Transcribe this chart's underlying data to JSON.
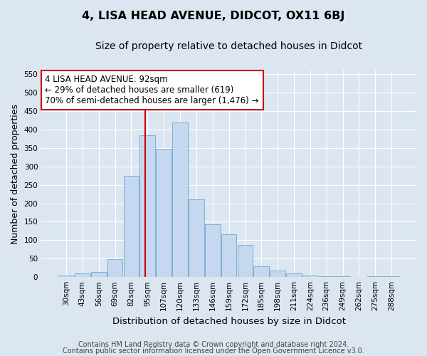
{
  "title": "4, LISA HEAD AVENUE, DIDCOT, OX11 6BJ",
  "subtitle": "Size of property relative to detached houses in Didcot",
  "xlabel": "Distribution of detached houses by size in Didcot",
  "ylabel": "Number of detached properties",
  "categories": [
    "30sqm",
    "43sqm",
    "56sqm",
    "69sqm",
    "82sqm",
    "95sqm",
    "107sqm",
    "120sqm",
    "133sqm",
    "146sqm",
    "159sqm",
    "172sqm",
    "185sqm",
    "198sqm",
    "211sqm",
    "224sqm",
    "236sqm",
    "249sqm",
    "262sqm",
    "275sqm",
    "288sqm"
  ],
  "values": [
    5,
    10,
    13,
    49,
    275,
    385,
    348,
    420,
    210,
    143,
    116,
    88,
    30,
    18,
    10,
    5,
    3,
    2,
    1,
    2,
    3
  ],
  "bar_color": "#c5d8f0",
  "bar_edge_color": "#7aafd4",
  "fig_bg_color": "#dce6f0",
  "axes_bg_color": "#dce6f0",
  "grid_color": "#ffffff",
  "vline_color": "#cc0000",
  "vline_x": 4.87,
  "annotation_text": "4 LISA HEAD AVENUE: 92sqm\n← 29% of detached houses are smaller (619)\n70% of semi-detached houses are larger (1,476) →",
  "annotation_box_facecolor": "#ffffff",
  "annotation_box_edgecolor": "#cc0000",
  "ylim": [
    0,
    560
  ],
  "yticks": [
    0,
    50,
    100,
    150,
    200,
    250,
    300,
    350,
    400,
    450,
    500,
    550
  ],
  "footer1": "Contains HM Land Registry data © Crown copyright and database right 2024.",
  "footer2": "Contains public sector information licensed under the Open Government Licence v3.0.",
  "title_fontsize": 11.5,
  "subtitle_fontsize": 10,
  "ylabel_fontsize": 9,
  "xlabel_fontsize": 9.5,
  "tick_fontsize": 7.5,
  "annotation_fontsize": 8.5,
  "footer_fontsize": 7
}
